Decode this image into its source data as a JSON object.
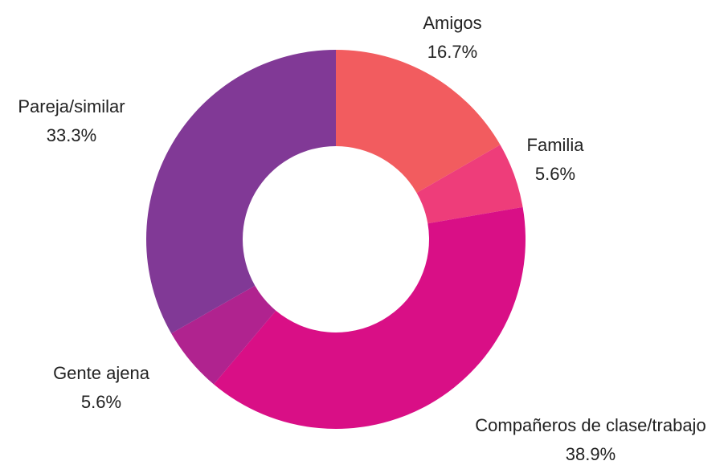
{
  "chart_data": {
    "type": "donut",
    "categories": [
      "Amigos",
      "Familia",
      "Compañeros de clase/trabajo",
      "Gente ajena",
      "Pareja/similar"
    ],
    "values": [
      16.7,
      5.6,
      38.9,
      5.6,
      33.3
    ],
    "value_labels": [
      "16.7%",
      "5.6%",
      "38.9%",
      "5.6%",
      "33.3%"
    ],
    "colors": [
      "#f25c5f",
      "#ee3d7a",
      "#d90f86",
      "#b0238f",
      "#813996"
    ]
  }
}
